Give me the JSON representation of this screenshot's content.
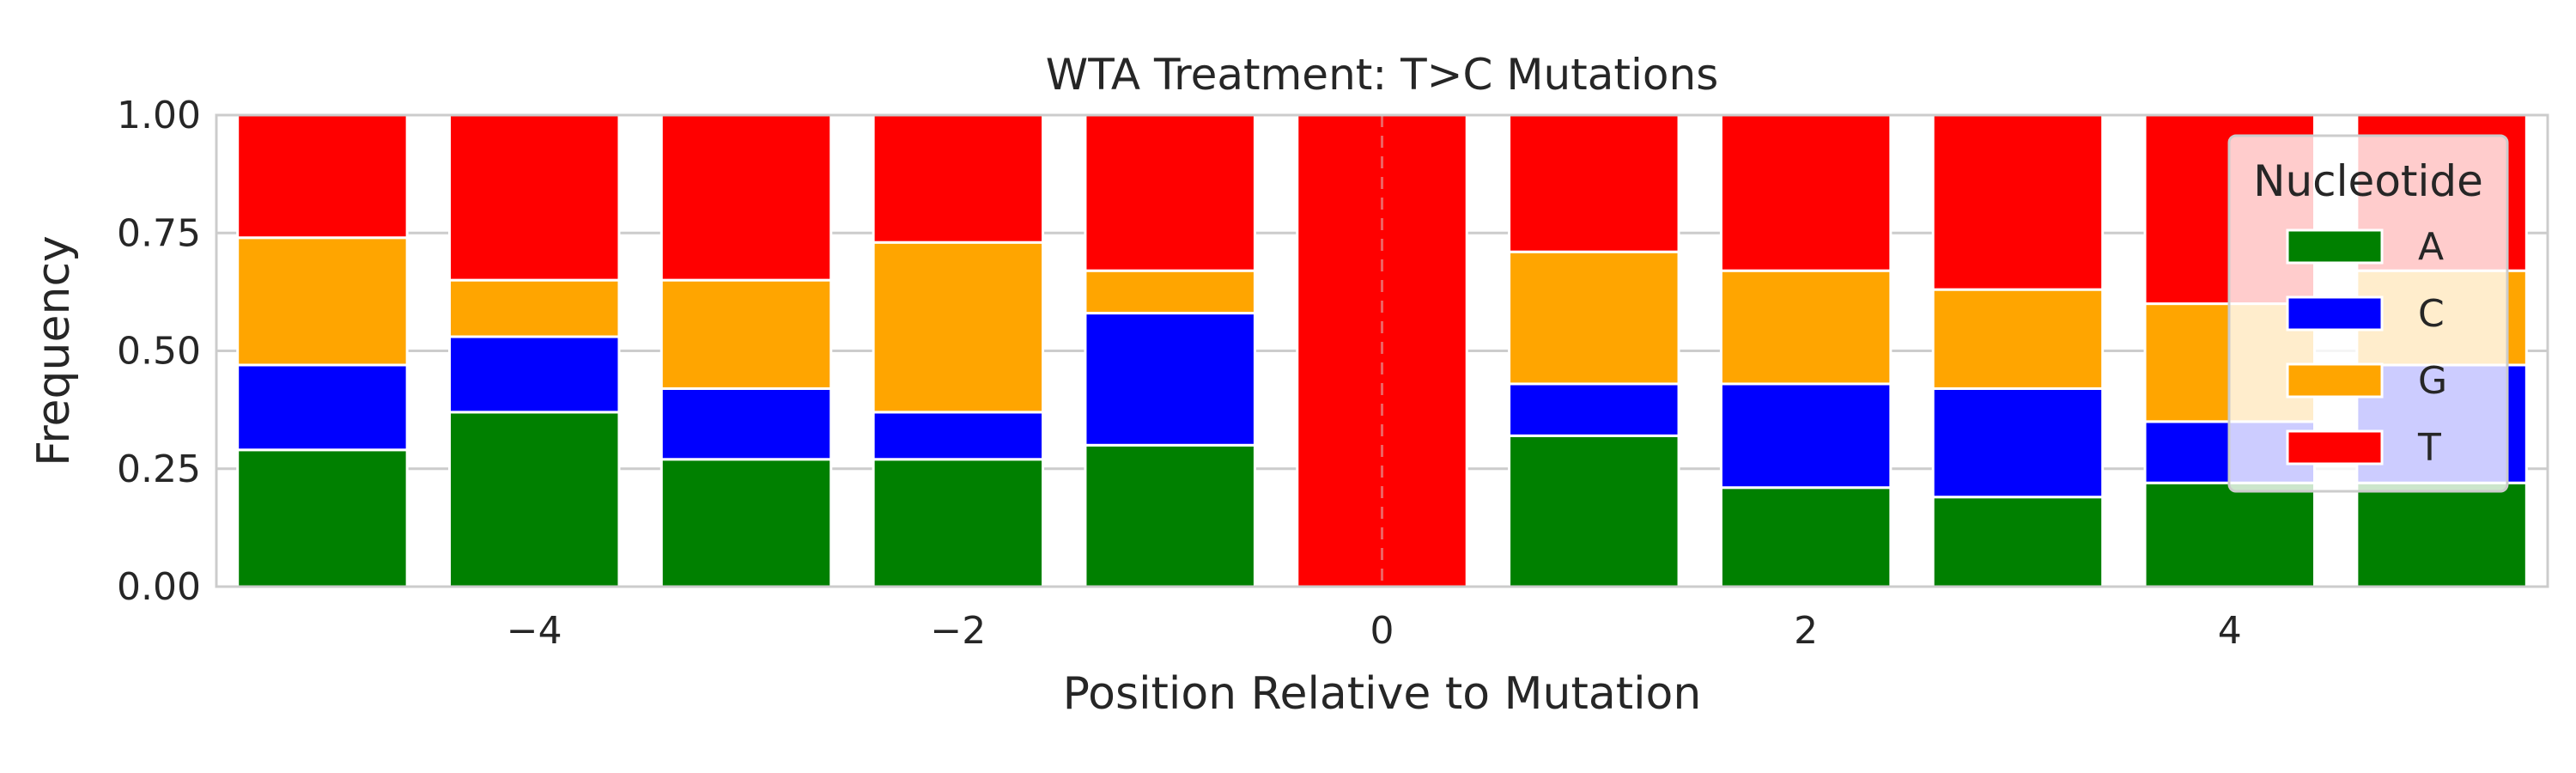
{
  "chart_data": {
    "type": "bar",
    "stacked": true,
    "title": "WTA Treatment: T>C Mutations",
    "xlabel": "Position Relative to Mutation",
    "ylabel": "Frequency",
    "x": [
      -5,
      -4,
      -3,
      -2,
      -1,
      0,
      1,
      2,
      3,
      4,
      5
    ],
    "xticks": [
      -4,
      -2,
      0,
      2,
      4
    ],
    "xtick_labels": [
      "−4",
      "−2",
      "0",
      "2",
      "4"
    ],
    "ylim": [
      0,
      1
    ],
    "yticks": [
      0,
      0.25,
      0.5,
      0.75,
      1.0
    ],
    "ytick_labels": [
      "0.00",
      "0.25",
      "0.50",
      "0.75",
      "1.00"
    ],
    "grid": true,
    "reference_line_x": 0,
    "legend": {
      "title": "Nucleotide",
      "placement": "top-right"
    },
    "series": [
      {
        "name": "A",
        "color": "#008000",
        "values": [
          0.29,
          0.37,
          0.27,
          0.27,
          0.3,
          0.0,
          0.32,
          0.21,
          0.19,
          0.22,
          0.22
        ]
      },
      {
        "name": "C",
        "color": "#0000ff",
        "values": [
          0.18,
          0.16,
          0.15,
          0.1,
          0.28,
          0.0,
          0.11,
          0.22,
          0.23,
          0.13,
          0.25
        ]
      },
      {
        "name": "G",
        "color": "#ffa500",
        "values": [
          0.27,
          0.12,
          0.23,
          0.36,
          0.09,
          0.0,
          0.28,
          0.24,
          0.21,
          0.25,
          0.2
        ]
      },
      {
        "name": "T",
        "color": "#ff0000",
        "values": [
          0.26,
          0.35,
          0.35,
          0.27,
          0.33,
          1.0,
          0.29,
          0.33,
          0.37,
          0.4,
          0.33
        ]
      }
    ]
  }
}
